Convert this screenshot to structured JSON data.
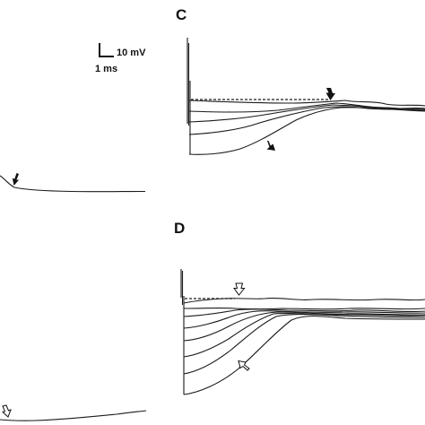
{
  "panels": {
    "c": {
      "letter": "C"
    },
    "d": {
      "letter": "D"
    }
  },
  "scale_bar": {
    "voltage_label": "10 mV",
    "time_label": "1 ms"
  },
  "colors": {
    "ink": "#1a1a1a",
    "background": "#ffffff"
  }
}
